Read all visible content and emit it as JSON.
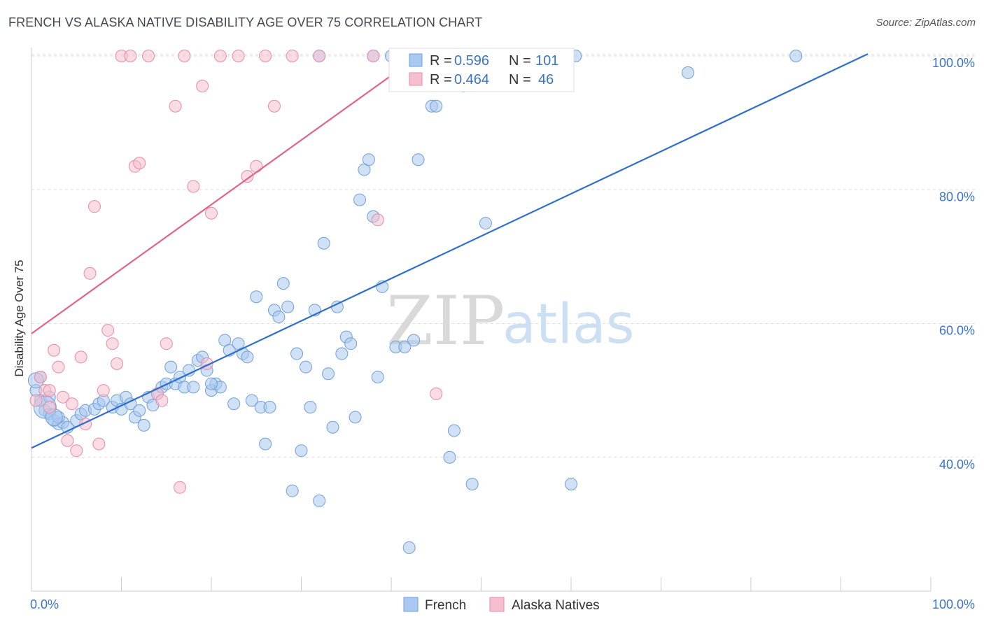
{
  "header": {
    "title": "FRENCH VS ALASKA NATIVE DISABILITY AGE OVER 75 CORRELATION CHART",
    "source": "Source: ZipAtlas.com"
  },
  "watermark": {
    "zip": "ZIP",
    "atlas": "atlas"
  },
  "colors": {
    "french_fill": "#a9c8ef",
    "french_stroke": "#6f9fd8",
    "french_line": "#2f6fcc",
    "alaska_fill": "#f6bfd0",
    "alaska_stroke": "#e68aa8",
    "alaska_line": "#e0658d",
    "tick_text": "#3a74c4",
    "grid": "#dddddd"
  },
  "legend": {
    "rows": [
      {
        "r_label": "R =",
        "r_value": "0.596",
        "n_label": "N =",
        "n_value": "101"
      },
      {
        "r_label": "R =",
        "r_value": "0.464",
        "n_label": "N =",
        "n_value": "46"
      }
    ]
  },
  "bottom_legend": [
    "French",
    "Alaska Natives"
  ],
  "chart_data": {
    "type": "scatter",
    "title": "FRENCH VS ALASKA NATIVE DISABILITY AGE OVER 75 CORRELATION CHART",
    "xlabel": "",
    "ylabel": "Disability Age Over 75",
    "xlim": [
      0,
      100
    ],
    "ylim": [
      20,
      103
    ],
    "x_tick_labels": [
      "0.0%",
      "100.0%"
    ],
    "y_ticks": [
      40,
      60,
      80,
      100
    ],
    "y_tick_labels": [
      "40.0%",
      "60.0%",
      "80.0%",
      "100.0%"
    ],
    "grid": true,
    "legend_position": "top-center",
    "series": [
      {
        "name": "French",
        "r": 0.596,
        "n": 101,
        "trend": {
          "x": [
            0,
            93
          ],
          "y": [
            41.4,
            100.3
          ]
        },
        "points": [
          [
            1,
            48.5
          ],
          [
            1.5,
            47
          ],
          [
            2,
            46.5
          ],
          [
            2.5,
            45.5
          ],
          [
            3,
            45
          ],
          [
            3.5,
            45.2
          ],
          [
            4,
            44.5
          ],
          [
            5,
            45.5
          ],
          [
            5.5,
            46.5
          ],
          [
            6,
            47
          ],
          [
            7,
            47.2
          ],
          [
            7.5,
            48
          ],
          [
            8,
            48.5
          ],
          [
            9,
            47.5
          ],
          [
            9.5,
            48.5
          ],
          [
            10,
            47.2
          ],
          [
            10.5,
            49
          ],
          [
            11,
            48
          ],
          [
            11.5,
            46
          ],
          [
            12,
            47
          ],
          [
            12.5,
            44.8
          ],
          [
            13,
            49
          ],
          [
            13.5,
            47.8
          ],
          [
            14,
            49.5
          ],
          [
            14.5,
            50.5
          ],
          [
            15,
            51
          ],
          [
            15.5,
            53.5
          ],
          [
            16,
            51
          ],
          [
            16.5,
            52
          ],
          [
            17,
            50.5
          ],
          [
            17.5,
            53
          ],
          [
            18,
            50.5
          ],
          [
            18.5,
            54.5
          ],
          [
            19,
            55
          ],
          [
            19.5,
            53
          ],
          [
            20,
            50
          ],
          [
            20.5,
            51
          ],
          [
            21,
            50.5
          ],
          [
            21.5,
            57.5
          ],
          [
            22,
            56
          ],
          [
            22.5,
            48
          ],
          [
            23,
            57
          ],
          [
            23.5,
            55.5
          ],
          [
            24,
            55
          ],
          [
            24.5,
            48.5
          ],
          [
            25,
            64
          ],
          [
            25.5,
            47.5
          ],
          [
            26,
            42
          ],
          [
            26.5,
            47.5
          ],
          [
            27,
            62
          ],
          [
            27.5,
            61
          ],
          [
            28,
            66
          ],
          [
            28.5,
            62.5
          ],
          [
            29,
            35
          ],
          [
            29.5,
            55.5
          ],
          [
            30,
            41
          ],
          [
            30.5,
            53.5
          ],
          [
            31,
            47.5
          ],
          [
            31.5,
            62
          ],
          [
            32,
            33.5
          ],
          [
            32.5,
            72
          ],
          [
            33,
            52.5
          ],
          [
            33.5,
            44.5
          ],
          [
            34,
            62.5
          ],
          [
            34.5,
            55.5
          ],
          [
            35,
            58
          ],
          [
            35.5,
            57
          ],
          [
            36,
            46
          ],
          [
            36.5,
            78.5
          ],
          [
            37,
            83
          ],
          [
            37.5,
            84.5
          ],
          [
            38,
            76
          ],
          [
            38.5,
            52
          ],
          [
            39,
            65.5
          ],
          [
            40.5,
            56.5
          ],
          [
            41.5,
            56.5
          ],
          [
            42,
            26.5
          ],
          [
            42.5,
            57.5
          ],
          [
            43,
            84.5
          ],
          [
            44.5,
            92.5
          ],
          [
            45,
            92.5
          ],
          [
            46.5,
            40
          ],
          [
            47,
            44
          ],
          [
            48,
            95.5
          ],
          [
            48.5,
            100
          ],
          [
            49,
            36
          ],
          [
            50.5,
            75
          ],
          [
            54.5,
            100
          ],
          [
            60,
            36
          ],
          [
            60.5,
            100
          ],
          [
            73,
            97.5
          ],
          [
            85,
            100
          ],
          [
            32,
            100
          ],
          [
            40,
            100
          ],
          [
            45,
            100
          ],
          [
            38,
            100
          ],
          [
            1,
            52
          ],
          [
            2,
            49
          ],
          [
            3,
            46
          ],
          [
            0.5,
            50
          ],
          [
            20,
            51
          ]
        ]
      },
      {
        "name": "Alaska Natives",
        "r": 0.464,
        "n": 46,
        "trend": {
          "x": [
            0,
            42
          ],
          "y": [
            58.5,
            99
          ]
        },
        "points": [
          [
            0.5,
            48.5
          ],
          [
            1,
            52
          ],
          [
            1.5,
            50
          ],
          [
            2,
            47.5
          ],
          [
            2.5,
            56
          ],
          [
            3,
            53.5
          ],
          [
            3.5,
            49
          ],
          [
            4,
            42.5
          ],
          [
            4.5,
            48
          ],
          [
            5,
            41
          ],
          [
            5.5,
            55
          ],
          [
            6,
            45
          ],
          [
            6.5,
            67.5
          ],
          [
            7,
            77.5
          ],
          [
            7.5,
            42
          ],
          [
            8,
            50
          ],
          [
            8.5,
            59
          ],
          [
            9,
            57
          ],
          [
            9.5,
            54
          ],
          [
            10,
            100
          ],
          [
            11,
            100
          ],
          [
            11.5,
            83.5
          ],
          [
            12,
            84
          ],
          [
            13,
            100
          ],
          [
            14,
            49.5
          ],
          [
            14.5,
            48.5
          ],
          [
            15,
            57
          ],
          [
            16,
            92.5
          ],
          [
            16.5,
            35.5
          ],
          [
            17,
            100
          ],
          [
            18,
            80.5
          ],
          [
            19,
            95.5
          ],
          [
            19.5,
            54
          ],
          [
            20,
            76.5
          ],
          [
            21,
            100
          ],
          [
            23,
            100
          ],
          [
            24,
            82
          ],
          [
            25,
            83.5
          ],
          [
            26,
            100
          ],
          [
            27,
            92.5
          ],
          [
            29,
            100
          ],
          [
            32,
            100
          ],
          [
            38,
            100
          ],
          [
            38.5,
            75.5
          ],
          [
            45,
            49.5
          ],
          [
            2,
            50
          ]
        ]
      }
    ]
  }
}
